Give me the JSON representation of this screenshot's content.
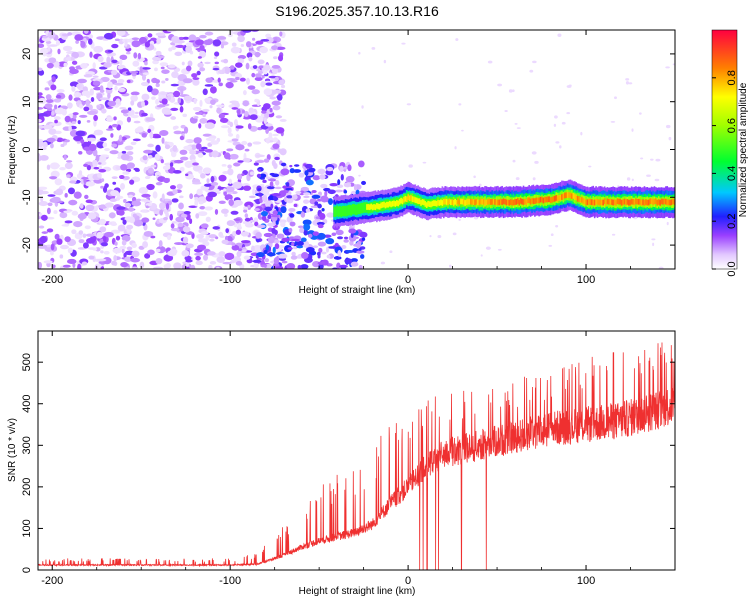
{
  "title": "S196.2025.357.10.13.R16",
  "chart_data": [
    {
      "type": "heatmap",
      "title": "S196.2025.357.10.13.R16",
      "xlabel": "Height of straight line (km)",
      "ylabel": "Frequency (Hz)",
      "xlim": [
        -208,
        150
      ],
      "ylim": [
        -25,
        25
      ],
      "xticks": [
        -200,
        -100,
        0,
        100
      ],
      "xtick_labels": [
        "-200",
        "-100",
        "0",
        "100"
      ],
      "yticks": [
        -20,
        -10,
        0,
        10,
        20
      ],
      "ytick_labels": [
        "-20",
        "-10",
        "0",
        "10",
        "20"
      ],
      "colorbar": {
        "label": "Normalized spectral amplitude",
        "range": [
          0,
          1
        ],
        "ticks": [
          0.0,
          0.2,
          0.4,
          0.6,
          0.8
        ],
        "tick_labels": [
          "0.0",
          "0.2",
          "0.4",
          "0.6",
          "0.8"
        ]
      },
      "ridge": {
        "x": [
          -40,
          -30,
          -20,
          -10,
          -5,
          0,
          10,
          20,
          40,
          60,
          80,
          90,
          100,
          120,
          150
        ],
        "freq": [
          -13,
          -12.5,
          -12,
          -11.5,
          -11,
          -10,
          -11.5,
          -11,
          -11,
          -11,
          -10.5,
          -9.5,
          -11,
          -11,
          -11
        ],
        "amplitude": [
          0.55,
          0.6,
          0.65,
          0.7,
          0.75,
          0.8,
          0.7,
          0.8,
          0.85,
          0.9,
          0.9,
          0.85,
          0.88,
          0.9,
          0.9
        ]
      }
    },
    {
      "type": "line",
      "xlabel": "Height of straight line (km)",
      "ylabel": "SNR (10 * v/v)",
      "xlim": [
        -208,
        150
      ],
      "ylim": [
        0,
        575
      ],
      "xticks": [
        -200,
        -100,
        0,
        100
      ],
      "xtick_labels": [
        "-200",
        "-100",
        "0",
        "100"
      ],
      "yticks": [
        0,
        100,
        200,
        300,
        400,
        500
      ],
      "ytick_labels": [
        "0",
        "100",
        "200",
        "300",
        "400",
        "500"
      ],
      "color": "#ef3030",
      "envelope": {
        "x": [
          -208,
          -150,
          -100,
          -85,
          -70,
          -60,
          -50,
          -40,
          -30,
          -20,
          -10,
          0,
          10,
          20,
          40,
          60,
          80,
          100,
          120,
          140,
          150
        ],
        "baseline": [
          12,
          12,
          12,
          14,
          35,
          55,
          70,
          80,
          90,
          110,
          160,
          200,
          250,
          280,
          300,
          320,
          340,
          350,
          360,
          385,
          400
        ],
        "peaks": [
          28,
          28,
          28,
          40,
          110,
          150,
          200,
          230,
          250,
          300,
          360,
          400,
          420,
          430,
          440,
          460,
          480,
          510,
          540,
          560,
          570
        ]
      }
    }
  ]
}
